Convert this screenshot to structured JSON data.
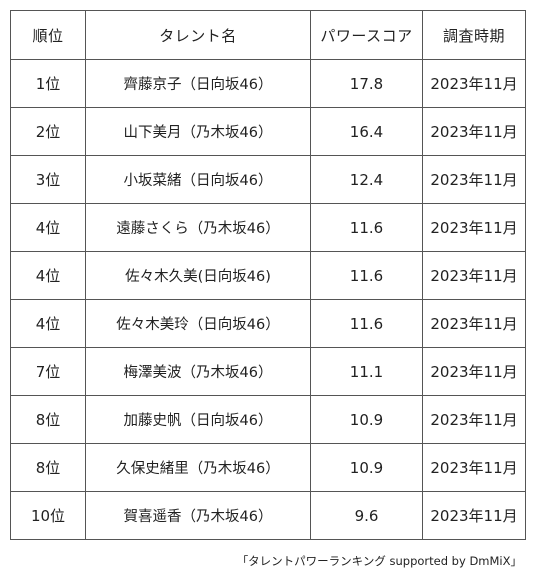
{
  "table": {
    "headers": {
      "rank": "順位",
      "name": "タレント名",
      "score": "パワースコア",
      "period": "調査時期"
    },
    "rows": [
      {
        "rank": "1位",
        "name": "齊藤京子（日向坂46）",
        "score": "17.8",
        "period": "2023年11月"
      },
      {
        "rank": "2位",
        "name": "山下美月（乃木坂46）",
        "score": "16.4",
        "period": "2023年11月"
      },
      {
        "rank": "3位",
        "name": "小坂菜緒（日向坂46）",
        "score": "12.4",
        "period": "2023年11月"
      },
      {
        "rank": "4位",
        "name": "遠藤さくら（乃木坂46）",
        "score": "11.6",
        "period": "2023年11月"
      },
      {
        "rank": "4位",
        "name": "佐々木久美(日向坂46)",
        "score": "11.6",
        "period": "2023年11月"
      },
      {
        "rank": "4位",
        "name": "佐々木美玲（日向坂46）",
        "score": "11.6",
        "period": "2023年11月"
      },
      {
        "rank": "7位",
        "name": "梅澤美波（乃木坂46）",
        "score": "11.1",
        "period": "2023年11月"
      },
      {
        "rank": "8位",
        "name": "加藤史帆（日向坂46）",
        "score": "10.9",
        "period": "2023年11月"
      },
      {
        "rank": "8位",
        "name": "久保史緒里（乃木坂46）",
        "score": "10.9",
        "period": "2023年11月"
      },
      {
        "rank": "10位",
        "name": "賀喜遥香（乃木坂46）",
        "score": "9.6",
        "period": "2023年11月"
      }
    ]
  },
  "source": "「タレントパワーランキング supported by DmMiX」"
}
